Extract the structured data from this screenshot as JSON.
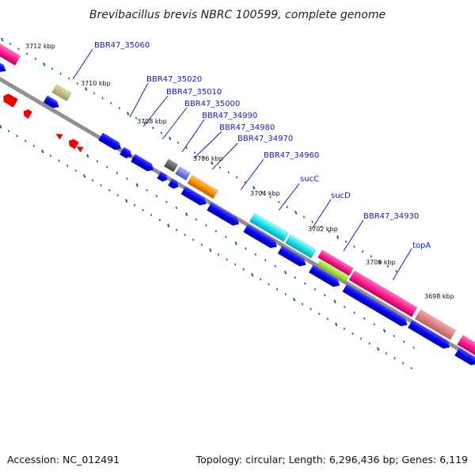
{
  "title": "Brevibacillus brevis NBRC 100599, complete genome",
  "footer": {
    "accession": "Accession: NC_012491",
    "summary": "Topology: circular; Length: 6,296,436 bp; Genes: 6,119"
  },
  "kbp_ticks": [
    "3712 kbp",
    "3710 kbp",
    "3708 kbp",
    "3706 kbp",
    "3704 kbp",
    "3702 kbp",
    "3700 kbp",
    "3698 kbp"
  ],
  "gene_labels": [
    "BBR47_35060",
    "BBR47_35020",
    "BBR47_35010",
    "BBR47_35000",
    "BBR47_34990",
    "BBR47_34980",
    "BBR47_34970",
    "BBR47_34960",
    "sucC",
    "sucD",
    "BBR47_34930",
    "topA"
  ],
  "colors": {
    "backbone": "#8a8a8a",
    "forward_cds": "#0000ee",
    "feature_red": "#ee0000",
    "tick": "#1a7a1a",
    "label": "#1a1ab0"
  }
}
